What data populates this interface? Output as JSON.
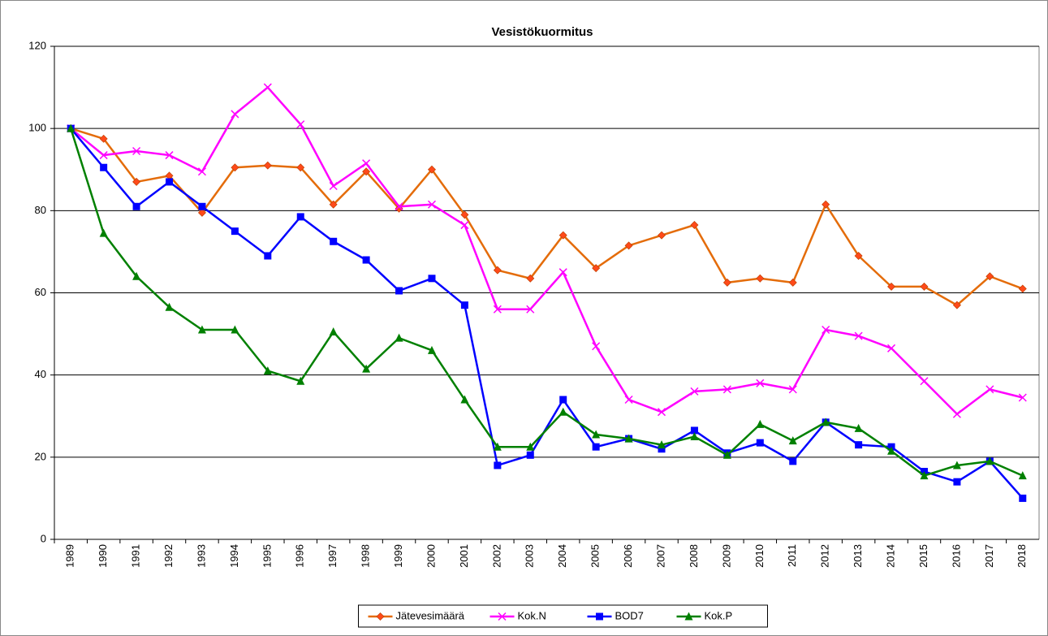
{
  "chart_data": {
    "type": "line",
    "title": "Vesistökuormitus",
    "categories": [
      "1989",
      "1990",
      "1991",
      "1992",
      "1993",
      "1994",
      "1995",
      "1996",
      "1997",
      "1998",
      "1999",
      "2000",
      "2001",
      "2002",
      "2003",
      "2004",
      "2005",
      "2006",
      "2007",
      "2008",
      "2009",
      "2010",
      "2011",
      "2012",
      "2013",
      "2014",
      "2015",
      "2016",
      "2017",
      "2018"
    ],
    "series": [
      {
        "name": "Jätevesimäärä",
        "color": "#E46C0A",
        "marker": "diamond",
        "marker_color": "#FF4A1A",
        "values": [
          100,
          97.5,
          87,
          88.5,
          79.5,
          90.5,
          91,
          90.5,
          81.5,
          89.5,
          80.5,
          90,
          79,
          65.5,
          63.5,
          74,
          66,
          71.5,
          74,
          76.5,
          62.5,
          63.5,
          62.5,
          81.5,
          69,
          61.5,
          61.5,
          57,
          64,
          61
        ]
      },
      {
        "name": "Kok.N",
        "color": "#FF00FF",
        "marker": "x",
        "marker_color": "#FF00FF",
        "values": [
          100,
          93.5,
          94.5,
          93.5,
          89.5,
          103.5,
          110,
          101,
          86,
          91.5,
          81,
          81.5,
          76.5,
          56,
          56,
          65,
          47,
          34,
          31,
          36,
          36.5,
          38,
          36.5,
          51,
          49.5,
          46.5,
          38.5,
          30.5,
          36.5,
          34.5
        ]
      },
      {
        "name": "BOD7",
        "color": "#0000FF",
        "marker": "square",
        "marker_color": "#0000FF",
        "values": [
          100,
          90.5,
          81,
          87,
          81,
          75,
          69,
          78.5,
          72.5,
          68,
          60.5,
          63.5,
          57,
          18,
          20.5,
          34,
          22.5,
          24.5,
          22,
          26.5,
          21,
          23.5,
          19,
          28.5,
          23,
          22.5,
          16.5,
          14,
          19,
          10
        ]
      },
      {
        "name": "Kok.P",
        "color": "#008000",
        "marker": "triangle",
        "marker_color": "#008000",
        "values": [
          100,
          74.5,
          64,
          56.5,
          51,
          51,
          41,
          38.5,
          50.5,
          41.5,
          49,
          46,
          34,
          22.5,
          22.5,
          31,
          25.5,
          24.5,
          23,
          25,
          20.5,
          28,
          24,
          28.5,
          27,
          21.5,
          15.5,
          18,
          19,
          15.5
        ]
      }
    ],
    "ylim": [
      0,
      120
    ],
    "yticks": [
      0,
      20,
      40,
      60,
      80,
      100,
      120
    ],
    "grid": true,
    "legend": "bottom"
  }
}
